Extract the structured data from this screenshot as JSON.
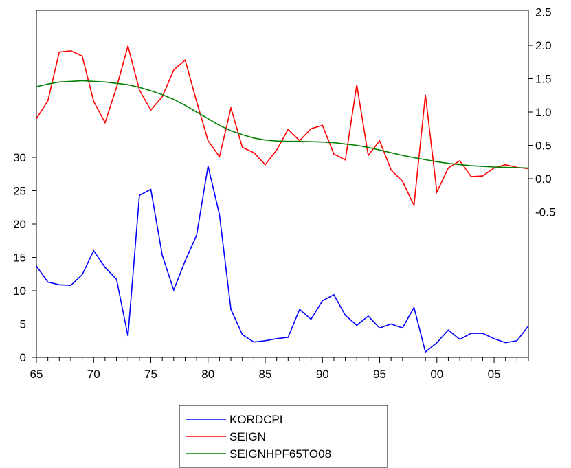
{
  "chart_data": {
    "type": "line",
    "x_ticks": [
      "65",
      "70",
      "75",
      "80",
      "85",
      "90",
      "95",
      "00",
      "05"
    ],
    "x_tick_years": [
      1965,
      1970,
      1975,
      1980,
      1985,
      1990,
      1995,
      2000,
      2005
    ],
    "x_range": [
      1965,
      2008
    ],
    "y_left": {
      "ticks": [
        0,
        5,
        10,
        15,
        20,
        25,
        30
      ],
      "tick_labels": [
        "0",
        "5",
        "10",
        "15",
        "20",
        "25",
        "30"
      ],
      "range": [
        0,
        30
      ]
    },
    "y_right": {
      "ticks": [
        -0.5,
        0.0,
        0.5,
        1.0,
        1.5,
        2.0,
        2.5
      ],
      "tick_labels": [
        "-0.5",
        "0.0",
        "0.5",
        "1.0",
        "1.5",
        "2.0",
        "2.5"
      ],
      "range": [
        -0.5,
        2.5
      ]
    },
    "legend_position": "bottom-center",
    "grid": false,
    "series": [
      {
        "name": "KORDCPI",
        "axis": "left",
        "color": "#0000ff",
        "x": [
          1965,
          1966,
          1967,
          1968,
          1969,
          1970,
          1971,
          1972,
          1973,
          1974,
          1975,
          1976,
          1977,
          1978,
          1979,
          1980,
          1981,
          1982,
          1983,
          1984,
          1985,
          1986,
          1987,
          1988,
          1989,
          1990,
          1991,
          1992,
          1993,
          1994,
          1995,
          1996,
          1997,
          1998,
          1999,
          2000,
          2001,
          2002,
          2003,
          2004,
          2005,
          2006,
          2007,
          2008
        ],
        "values": [
          13.7,
          11.3,
          10.9,
          10.8,
          12.4,
          16.0,
          13.5,
          11.7,
          3.2,
          24.3,
          25.2,
          15.3,
          10.1,
          14.5,
          18.3,
          28.7,
          21.4,
          7.2,
          3.4,
          2.3,
          2.5,
          2.8,
          3.0,
          7.2,
          5.7,
          8.5,
          9.4,
          6.3,
          4.8,
          6.2,
          4.4,
          5.0,
          4.4,
          7.5,
          0.8,
          2.2,
          4.1,
          2.7,
          3.6,
          3.6,
          2.8,
          2.2,
          2.5,
          4.7
        ]
      },
      {
        "name": "SEIGN",
        "axis": "right",
        "color": "#ff0000",
        "x": [
          1965,
          1966,
          1967,
          1968,
          1969,
          1970,
          1971,
          1972,
          1973,
          1974,
          1975,
          1976,
          1977,
          1978,
          1979,
          1980,
          1981,
          1982,
          1983,
          1984,
          1985,
          1986,
          1987,
          1988,
          1989,
          1990,
          1991,
          1992,
          1993,
          1994,
          1995,
          1996,
          1997,
          1998,
          1999,
          2000,
          2001,
          2002,
          2003,
          2004,
          2005,
          2006,
          2007,
          2008
        ],
        "values": [
          0.9,
          1.17,
          1.9,
          1.92,
          1.84,
          1.16,
          0.84,
          1.37,
          1.99,
          1.33,
          1.03,
          1.23,
          1.63,
          1.78,
          1.16,
          0.57,
          0.33,
          1.06,
          0.47,
          0.39,
          0.21,
          0.43,
          0.74,
          0.57,
          0.75,
          0.8,
          0.37,
          0.28,
          1.41,
          0.35,
          0.57,
          0.13,
          -0.04,
          -0.4,
          1.26,
          -0.2,
          0.16,
          0.27,
          0.03,
          0.04,
          0.16,
          0.21,
          0.17,
          0.15
        ]
      },
      {
        "name": "SEIGNHPF65TO08",
        "axis": "right",
        "color": "#008000",
        "x": [
          1965,
          1966,
          1967,
          1968,
          1969,
          1970,
          1971,
          1972,
          1973,
          1974,
          1975,
          1976,
          1977,
          1978,
          1979,
          1980,
          1981,
          1982,
          1983,
          1984,
          1985,
          1986,
          1987,
          1988,
          1989,
          1990,
          1991,
          1992,
          1993,
          1994,
          1995,
          1996,
          1997,
          1998,
          1999,
          2000,
          2001,
          2002,
          2003,
          2004,
          2005,
          2006,
          2007,
          2008
        ],
        "values": [
          1.38,
          1.42,
          1.45,
          1.46,
          1.47,
          1.46,
          1.45,
          1.43,
          1.41,
          1.37,
          1.32,
          1.26,
          1.19,
          1.1,
          1.0,
          0.9,
          0.8,
          0.72,
          0.66,
          0.61,
          0.58,
          0.565,
          0.56,
          0.56,
          0.555,
          0.55,
          0.54,
          0.52,
          0.5,
          0.47,
          0.43,
          0.39,
          0.35,
          0.315,
          0.285,
          0.255,
          0.23,
          0.21,
          0.195,
          0.185,
          0.175,
          0.17,
          0.165,
          0.16
        ]
      }
    ]
  }
}
